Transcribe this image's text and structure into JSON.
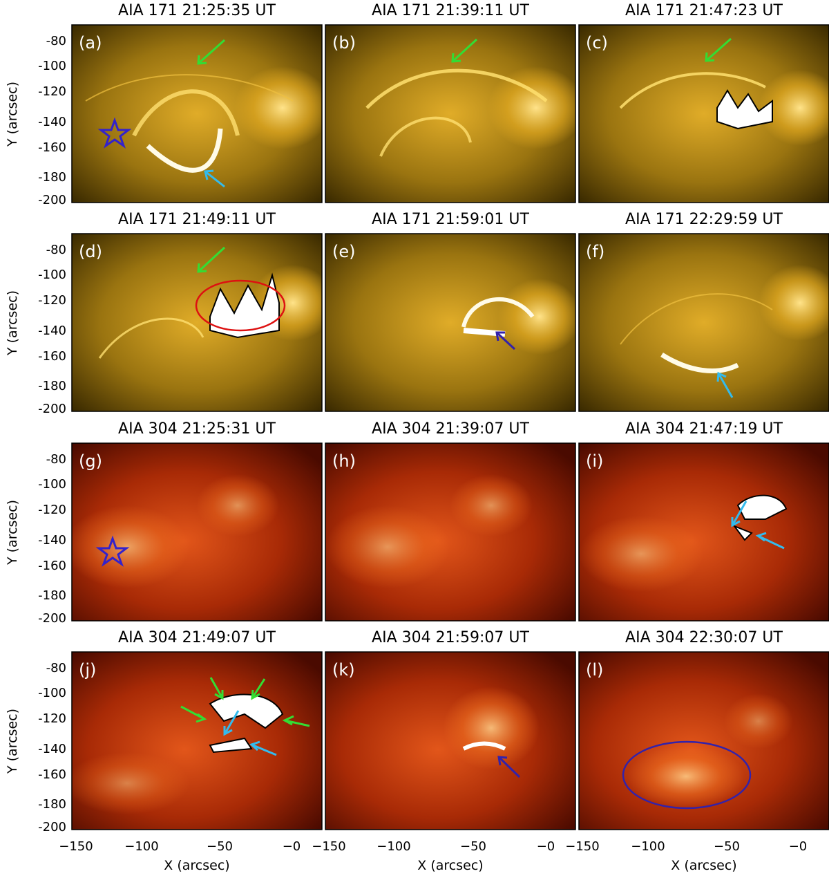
{
  "figure": {
    "panels": [
      {
        "letter": "(a)",
        "title": "AIA  171  21:25:35  UT",
        "kind": "171"
      },
      {
        "letter": "(b)",
        "title": "AIA  171  21:39:11  UT",
        "kind": "171"
      },
      {
        "letter": "(c)",
        "title": "AIA  171  21:47:23  UT",
        "kind": "171"
      },
      {
        "letter": "(d)",
        "title": "AIA  171  21:49:11  UT",
        "kind": "171"
      },
      {
        "letter": "(e)",
        "title": "AIA  171  21:59:01  UT",
        "kind": "171"
      },
      {
        "letter": "(f)",
        "title": "AIA  171  22:29:59  UT",
        "kind": "171"
      },
      {
        "letter": "(g)",
        "title": "AIA  304  21:25:31  UT",
        "kind": "304"
      },
      {
        "letter": "(h)",
        "title": "AIA  304  21:39:07  UT",
        "kind": "304"
      },
      {
        "letter": "(i)",
        "title": "AIA  304  21:47:19  UT",
        "kind": "304"
      },
      {
        "letter": "(j)",
        "title": "AIA  304  21:49:07  UT",
        "kind": "304"
      },
      {
        "letter": "(k)",
        "title": "AIA  304  21:59:07  UT",
        "kind": "304"
      },
      {
        "letter": "(l)",
        "title": "AIA  304  22:30:07  UT",
        "kind": "304"
      }
    ],
    "y_axis": {
      "label": "Y (arcsec)",
      "ticks": [
        "-80",
        "-100",
        "-120",
        "-140",
        "-160",
        "-180",
        "-200"
      ]
    },
    "x_axis": {
      "label": "X (arcsec)",
      "ticks": [
        "−150",
        "−100",
        "−50",
        "−0"
      ]
    },
    "colors": {
      "aia171_dark": "#3a2a00",
      "aia171_mid": "#b08a10",
      "aia171_bright": "#ffd24a",
      "aia304_dark": "#4a0a00",
      "aia304_mid": "#c03a08",
      "aia304_bright": "#ff9a3a",
      "green_arrow": "#33dd33",
      "cyan_arrow": "#33bbee",
      "blue_arrow": "#3322aa",
      "red_ellipse": "#dd1111",
      "star": "#3322cc"
    },
    "markers": {
      "star_icon": "star-icon",
      "arrow_icon": "arrow-icon",
      "ellipse_icon": "ellipse-outline"
    }
  }
}
